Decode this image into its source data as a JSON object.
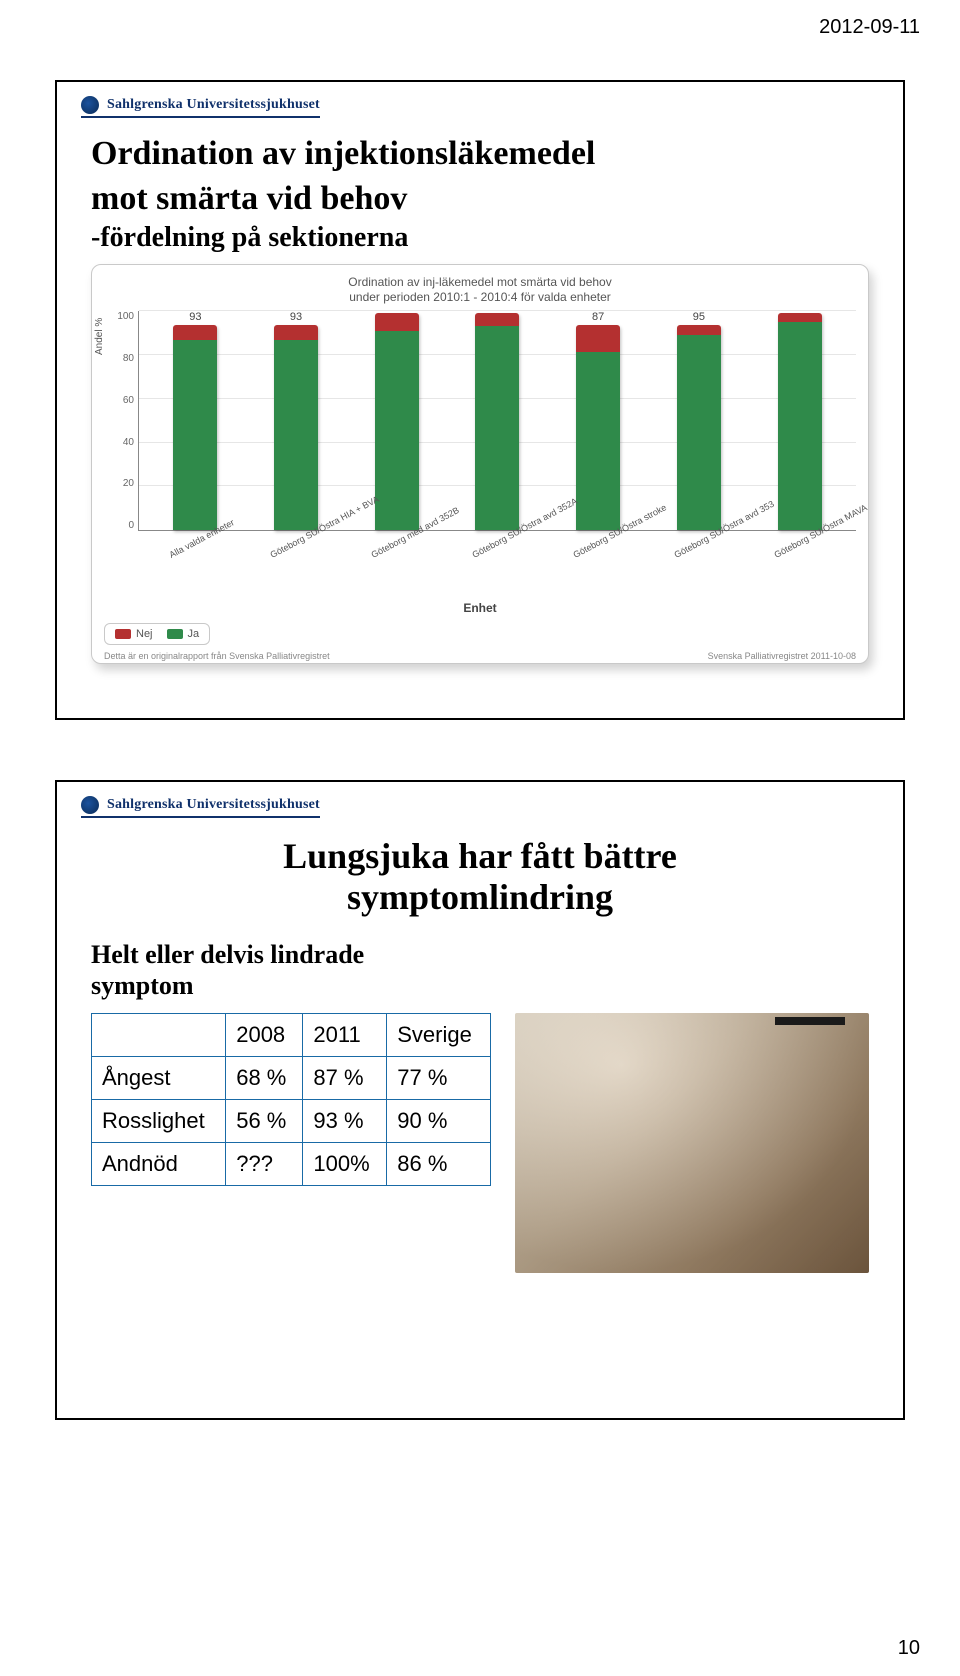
{
  "page": {
    "date": "2012-09-11",
    "number": "10"
  },
  "logo_text": "Sahlgrenska Universitetssjukhuset",
  "slide1": {
    "title_l1": "Ordination av injektionsläkemedel",
    "title_l2": "mot smärta vid behov",
    "subtitle": "-fördelning på sektionerna",
    "chart": {
      "title_l1": "Ordination av inj-läkemedel mot smärta vid behov",
      "title_l2": "under perioden 2010:1 - 2010:4 för valda enheter",
      "y_label": "Andel %",
      "y_ticks": [
        "100",
        "80",
        "60",
        "40",
        "20",
        "0"
      ],
      "y_max": 100,
      "x_axis_title": "Enhet",
      "series_colors": {
        "nej": "#b43030",
        "ja": "#2f8a4a"
      },
      "bars": [
        {
          "label": "Alla valda enheter",
          "value_label": "93",
          "ja": 93,
          "nej": 7
        },
        {
          "label": "Göteborg SU/Östra HIA + BVA",
          "value_label": "93",
          "ja": 93,
          "nej": 7
        },
        {
          "label": "Göteborg med avd 352B",
          "value_label": "",
          "ja": 92,
          "nej": 8
        },
        {
          "label": "Göteborg SU/Östra avd 352A",
          "value_label": "",
          "ja": 94,
          "nej": 6
        },
        {
          "label": "Göteborg SU/Östra stroke",
          "value_label": "87",
          "ja": 87,
          "nej": 13
        },
        {
          "label": "Göteborg SU/Östra avd 353",
          "value_label": "95",
          "ja": 95,
          "nej": 5
        },
        {
          "label": "Göteborg SU/Östra MAVA",
          "value_label": "",
          "ja": 96,
          "nej": 4
        }
      ],
      "legend": [
        {
          "label": "Nej",
          "color": "#b43030"
        },
        {
          "label": "Ja",
          "color": "#2f8a4a"
        }
      ],
      "footer_left": "Detta är en originalrapport från Svenska Palliativregistret",
      "footer_right": "Svenska Palliativregistret 2011-10-08"
    }
  },
  "slide2": {
    "title_l1": "Lungsjuka har fått bättre",
    "title_l2": "symptomlindring",
    "subheading_l1": "Helt eller delvis lindrade",
    "subheading_l2": "symptom",
    "table": {
      "columns": [
        "",
        "2008",
        "2011",
        "Sverige"
      ],
      "rows": [
        [
          "Ångest",
          "68 %",
          "87 %",
          "77 %"
        ],
        [
          "Rosslighet",
          "56 %",
          "93 %",
          "90 %"
        ],
        [
          "Andnöd",
          "???",
          "100%",
          "86 %"
        ]
      ],
      "border_color": "#196aa6"
    },
    "photo_bar_left": 260
  }
}
